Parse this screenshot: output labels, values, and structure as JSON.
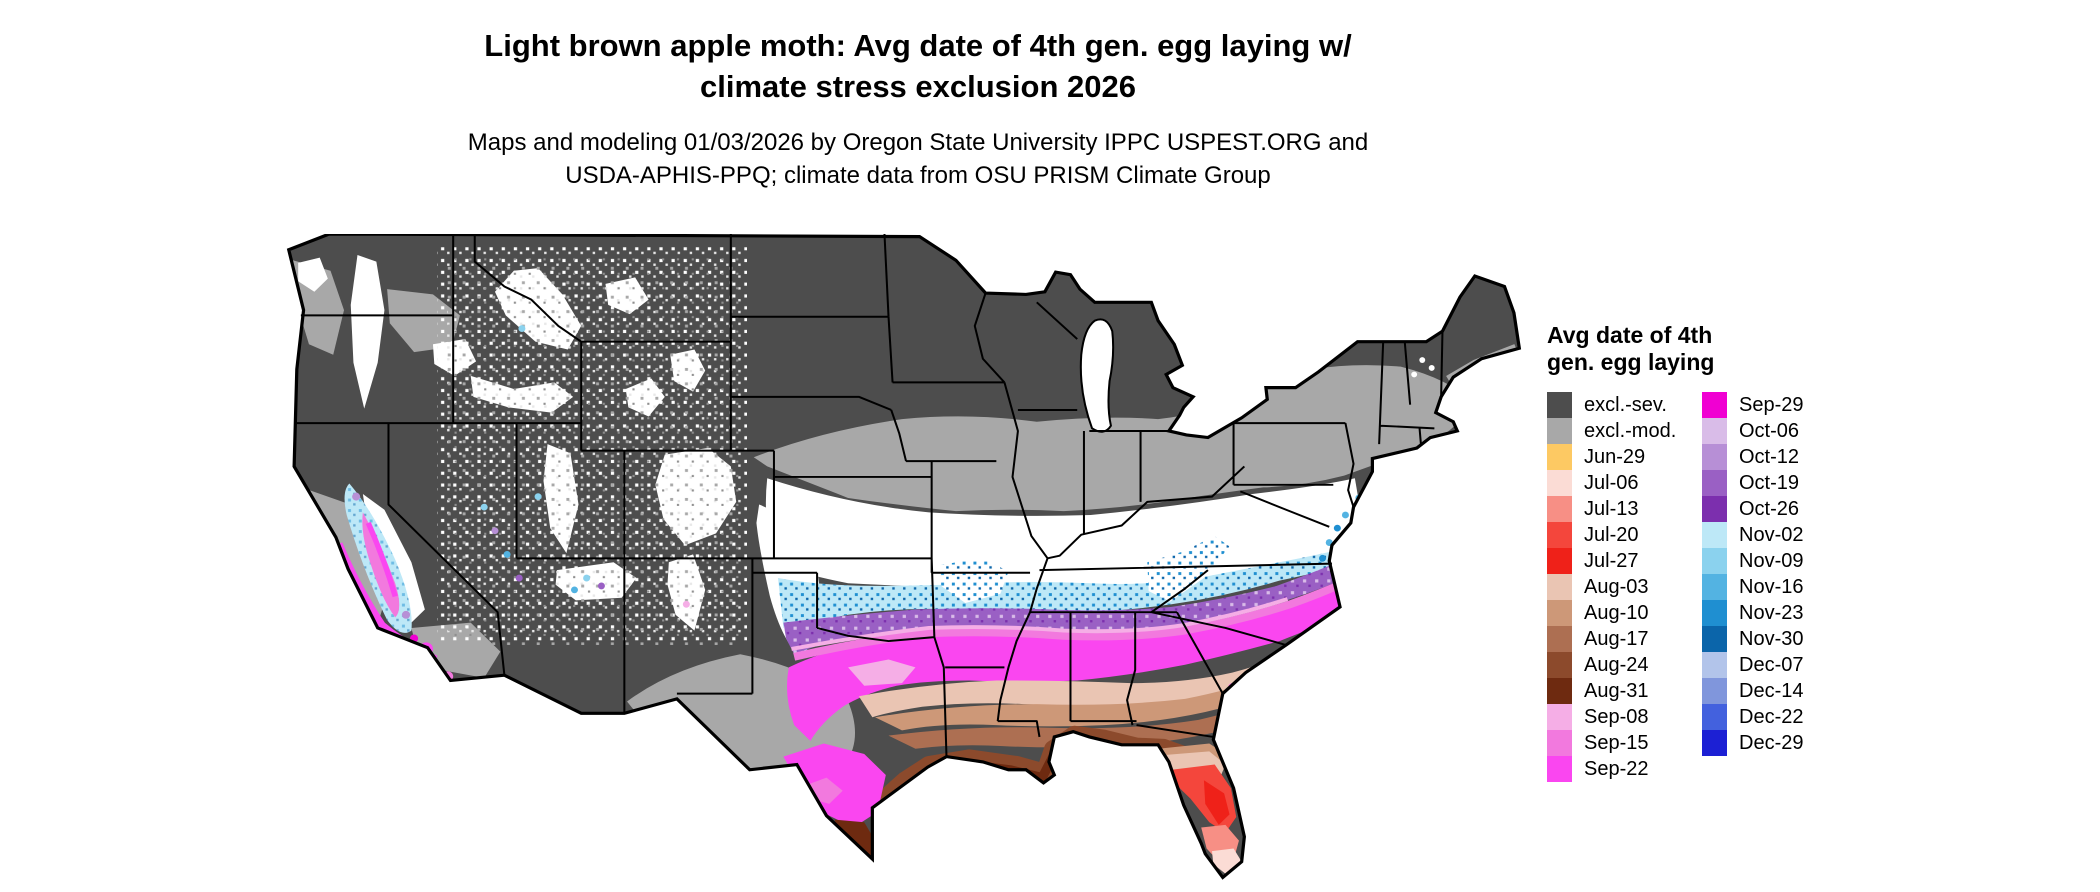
{
  "title": {
    "line1": "Light brown apple moth: Avg date of 4th gen. egg laying w/",
    "line2": "climate stress exclusion 2026"
  },
  "subtitle": {
    "line1": "Maps and modeling 01/03/2026 by Oregon State University IPPC USPEST.ORG and",
    "line2": "USDA-APHIS-PPQ; climate data from OSU PRISM Climate Group"
  },
  "legend": {
    "title_line1": "Avg date of 4th",
    "title_line2": "gen. egg laying",
    "column1": [
      {
        "label": "excl.-sev.",
        "color": "#4d4d4d"
      },
      {
        "label": "excl.-mod.",
        "color": "#a8a8a8"
      },
      {
        "label": "Jun-29",
        "color": "#fdc963"
      },
      {
        "label": "Jul-06",
        "color": "#fbdcd5"
      },
      {
        "label": "Jul-13",
        "color": "#f78f85"
      },
      {
        "label": "Jul-20",
        "color": "#f4463c"
      },
      {
        "label": "Jul-27",
        "color": "#ef2119"
      },
      {
        "label": "Aug-03",
        "color": "#eac5b3"
      },
      {
        "label": "Aug-10",
        "color": "#cd9878"
      },
      {
        "label": "Aug-17",
        "color": "#ad6f52"
      },
      {
        "label": "Aug-24",
        "color": "#8c4a2c"
      },
      {
        "label": "Aug-31",
        "color": "#6e2a10"
      },
      {
        "label": "Sep-08",
        "color": "#f5aee6"
      },
      {
        "label": "Sep-15",
        "color": "#f279de"
      },
      {
        "label": "Sep-22",
        "color": "#fa46f0"
      }
    ],
    "column2": [
      {
        "label": "Sep-29",
        "color": "#f000d2"
      },
      {
        "label": "Oct-06",
        "color": "#d9bce8"
      },
      {
        "label": "Oct-12",
        "color": "#b78fd6"
      },
      {
        "label": "Oct-19",
        "color": "#9a60c4"
      },
      {
        "label": "Oct-26",
        "color": "#7c2fae"
      },
      {
        "label": "Nov-02",
        "color": "#bde8f7"
      },
      {
        "label": "Nov-09",
        "color": "#8bd2ee"
      },
      {
        "label": "Nov-16",
        "color": "#53b3e2"
      },
      {
        "label": "Nov-23",
        "color": "#1f8fd1"
      },
      {
        "label": "Nov-30",
        "color": "#0b65aa"
      },
      {
        "label": "Dec-07",
        "color": "#b2c4ea"
      },
      {
        "label": "Dec-14",
        "color": "#8096dc"
      },
      {
        "label": "Dec-22",
        "color": "#4361de"
      },
      {
        "label": "Dec-29",
        "color": "#1c20d4"
      }
    ]
  },
  "map": {
    "area": "Contiguous United States",
    "type": "choropleth raster map",
    "white_area_color": "#ffffff",
    "border_color": "#000000"
  }
}
